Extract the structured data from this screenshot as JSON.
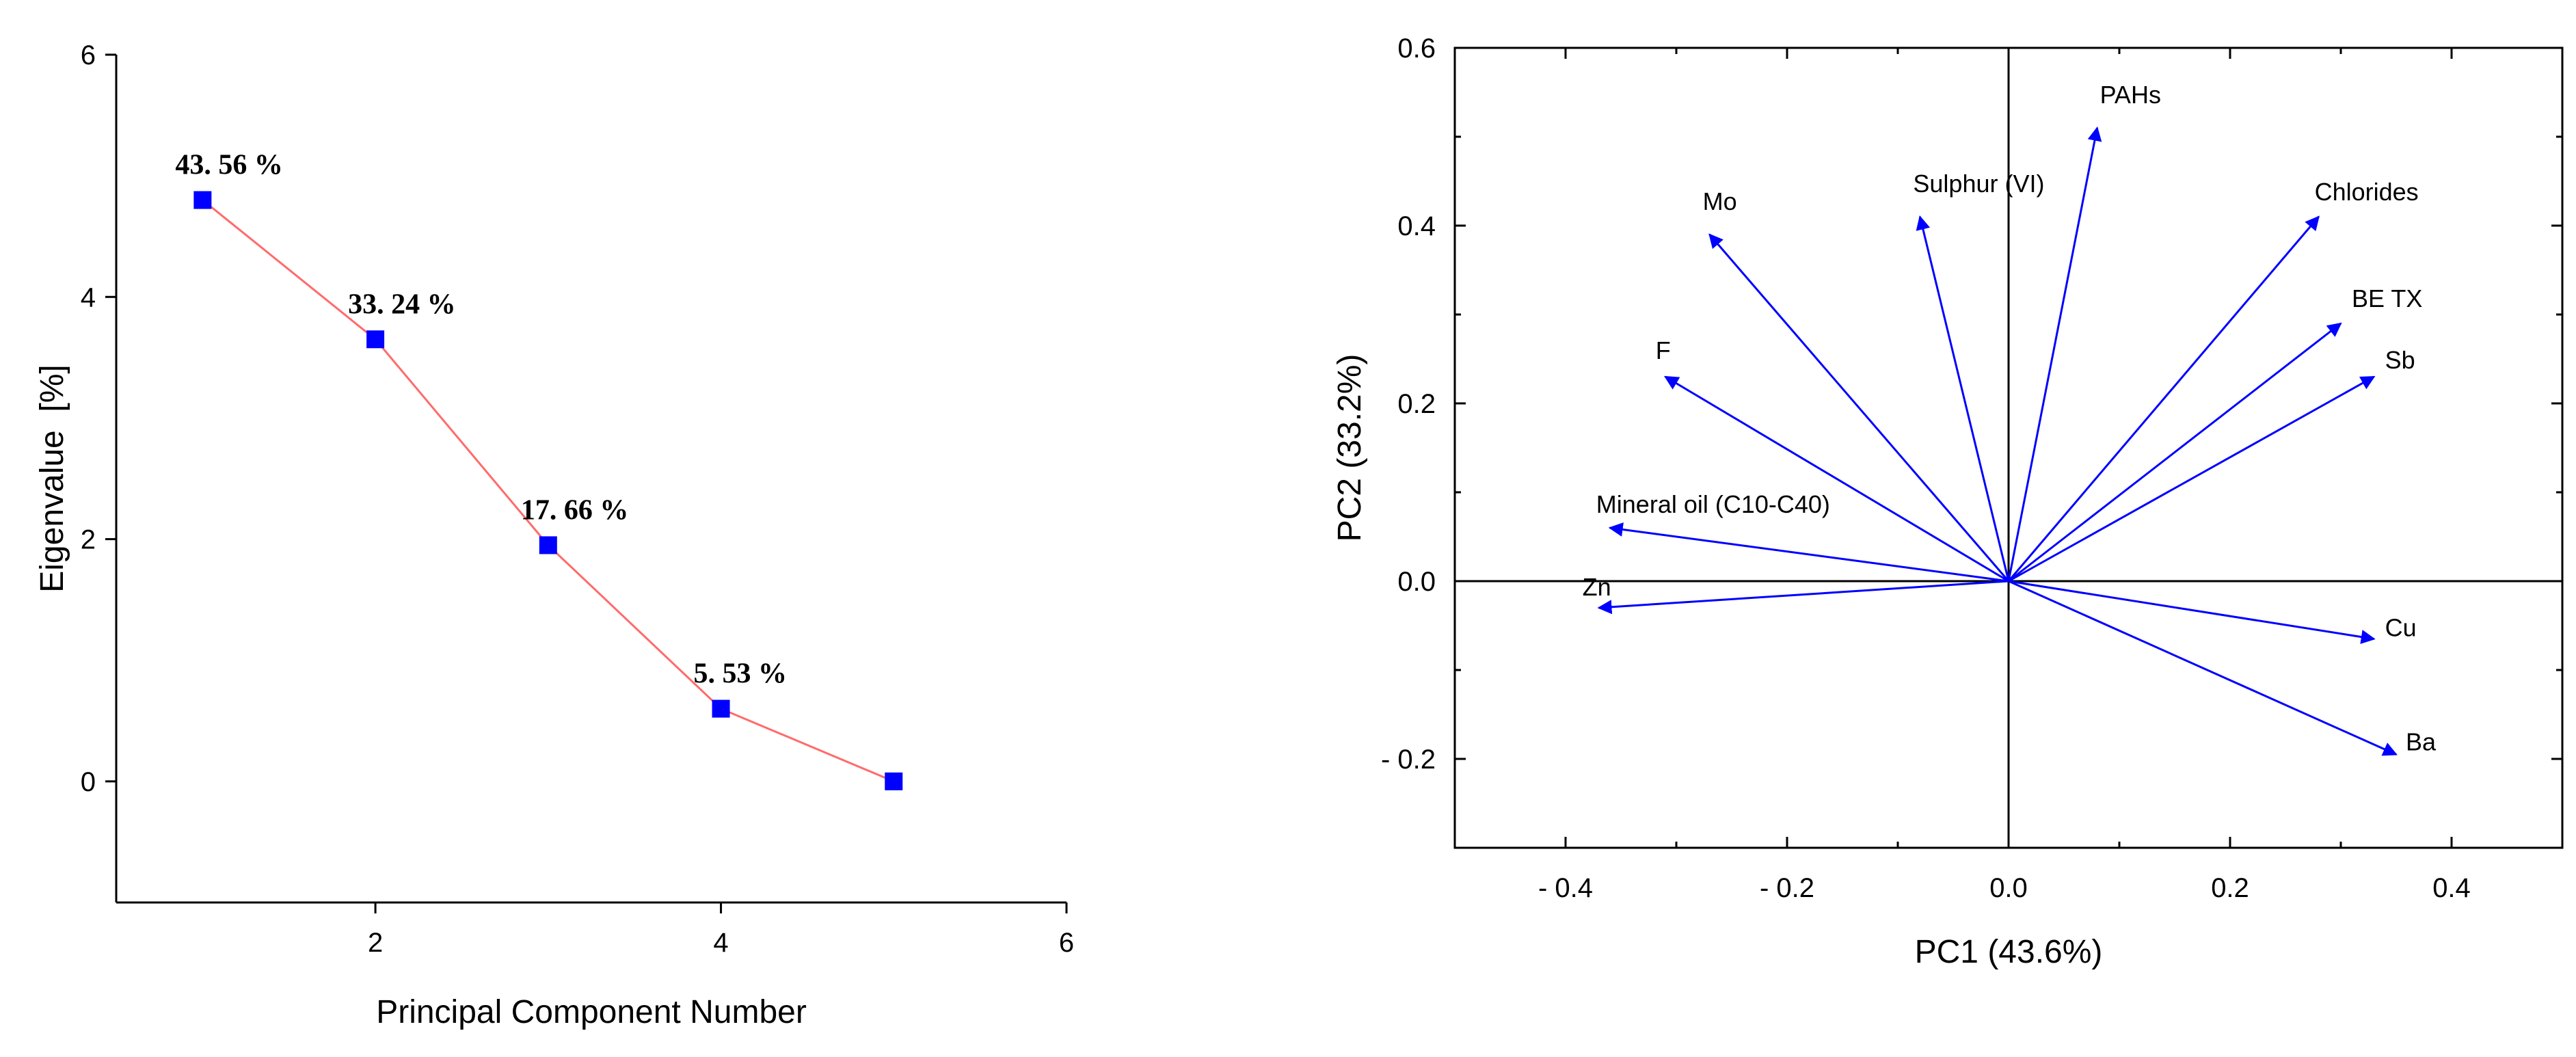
{
  "chart_data": [
    {
      "type": "line",
      "title": "",
      "xlabel": "Principal Component Number",
      "ylabel": "Eigenvalue  [%]",
      "xlim": [
        0.5,
        6
      ],
      "ylim": [
        -1,
        6
      ],
      "xticks": [
        2,
        4,
        6
      ],
      "yticks": [
        0,
        2,
        4,
        6
      ],
      "grid": false,
      "line_color": "#ff6b6b",
      "marker_color": "#0000ff",
      "series": [
        {
          "x": [
            1,
            2,
            3,
            4,
            5
          ],
          "values": [
            4.8,
            3.65,
            1.95,
            0.6,
            0.0
          ],
          "labels": [
            "43. 56 %",
            "33. 24 %",
            "17. 66 %",
            "5. 53 %",
            ""
          ]
        }
      ]
    },
    {
      "type": "scatter",
      "subtype": "biplot-vectors",
      "title": "",
      "xlabel": "PC1 (43.6%)",
      "ylabel": "PC2 (33.2%)",
      "xlim": [
        -0.5,
        0.5
      ],
      "ylim": [
        -0.3,
        0.6
      ],
      "xticks": [
        -0.4,
        -0.2,
        0.0,
        0.2,
        0.4
      ],
      "xtick_labels": [
        "- 0.4",
        "- 0.2",
        "0.0",
        "0.2",
        "0.4"
      ],
      "yticks": [
        -0.2,
        0.0,
        0.2,
        0.4,
        0.6
      ],
      "ytick_labels": [
        "- 0.2",
        "0.0",
        "0.2",
        "0.4",
        "0.6"
      ],
      "grid": false,
      "vector_color": "#0000ff",
      "vectors": [
        {
          "label": "PAHs",
          "x": 0.08,
          "y": 0.51
        },
        {
          "label": "Sulphur (VI)",
          "x": -0.08,
          "y": 0.41
        },
        {
          "label": "Mo",
          "x": -0.27,
          "y": 0.39
        },
        {
          "label": "Chlorides",
          "x": 0.28,
          "y": 0.41
        },
        {
          "label": "BE TX",
          "x": 0.3,
          "y": 0.29
        },
        {
          "label": "Sb",
          "x": 0.33,
          "y": 0.23
        },
        {
          "label": "F",
          "x": -0.31,
          "y": 0.23
        },
        {
          "label": "Mineral oil (C10-C40)",
          "x": -0.36,
          "y": 0.06
        },
        {
          "label": "Zn",
          "x": -0.37,
          "y": -0.03
        },
        {
          "label": "Cu",
          "x": 0.33,
          "y": -0.065
        },
        {
          "label": "Ba",
          "x": 0.35,
          "y": -0.195
        }
      ]
    }
  ]
}
